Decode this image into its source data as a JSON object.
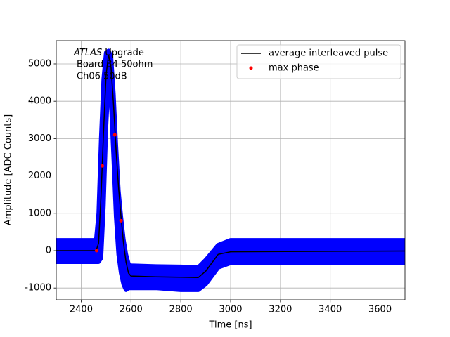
{
  "chart_data": {
    "type": "line",
    "xlabel": "Time [ns]",
    "ylabel": "Amplitude [ADC Counts]",
    "annotation_italic": "ATLAS",
    "annotation_lines": [
      "Upgrade",
      "Board 34 50ohm",
      "Ch06 50dB"
    ],
    "x": [
      2300,
      2460,
      2470,
      2480,
      2490,
      2500,
      2510,
      2520,
      2530,
      2540,
      2550,
      2560,
      2570,
      2580,
      2590,
      2600,
      2700,
      2800,
      2870,
      2900,
      2950,
      3000,
      3700
    ],
    "band": {
      "color": "#0000ff",
      "upper": [
        280,
        280,
        1000,
        3000,
        4600,
        5300,
        5350,
        5200,
        4200,
        2800,
        1600,
        900,
        300,
        -100,
        -350,
        -400,
        -420,
        -430,
        -450,
        -250,
        150,
        280,
        280
      ],
      "lower": [
        -300,
        -300,
        -300,
        -200,
        1200,
        3300,
        4600,
        4000,
        2500,
        900,
        -100,
        -600,
        -900,
        -1050,
        -1000,
        -1000,
        -1000,
        -1050,
        -1050,
        -900,
        -450,
        -330,
        -330
      ]
    },
    "series": [
      {
        "name": "average interleaved pulse",
        "color": "#000000",
        "values": [
          0,
          0,
          200,
          1500,
          3200,
          4700,
          5250,
          4900,
          3900,
          2700,
          1700,
          900,
          200,
          -300,
          -600,
          -680,
          -700,
          -710,
          -720,
          -550,
          -100,
          -30,
          -10
        ]
      },
      {
        "name": "max phase",
        "color": "#ff0000",
        "marker": "dot",
        "x": [
          2462,
          2485,
          2535,
          2560
        ],
        "values": [
          0,
          2270,
          3100,
          800
        ]
      }
    ],
    "xlim": [
      2300,
      3700
    ],
    "xticks": [
      2400,
      2600,
      2800,
      3000,
      3200,
      3400,
      3600
    ],
    "ylim": [
      -1316,
      5620
    ],
    "yticks": [
      -1000,
      0,
      1000,
      2000,
      3000,
      4000,
      5000
    ],
    "grid": true,
    "legend": "upper right"
  }
}
